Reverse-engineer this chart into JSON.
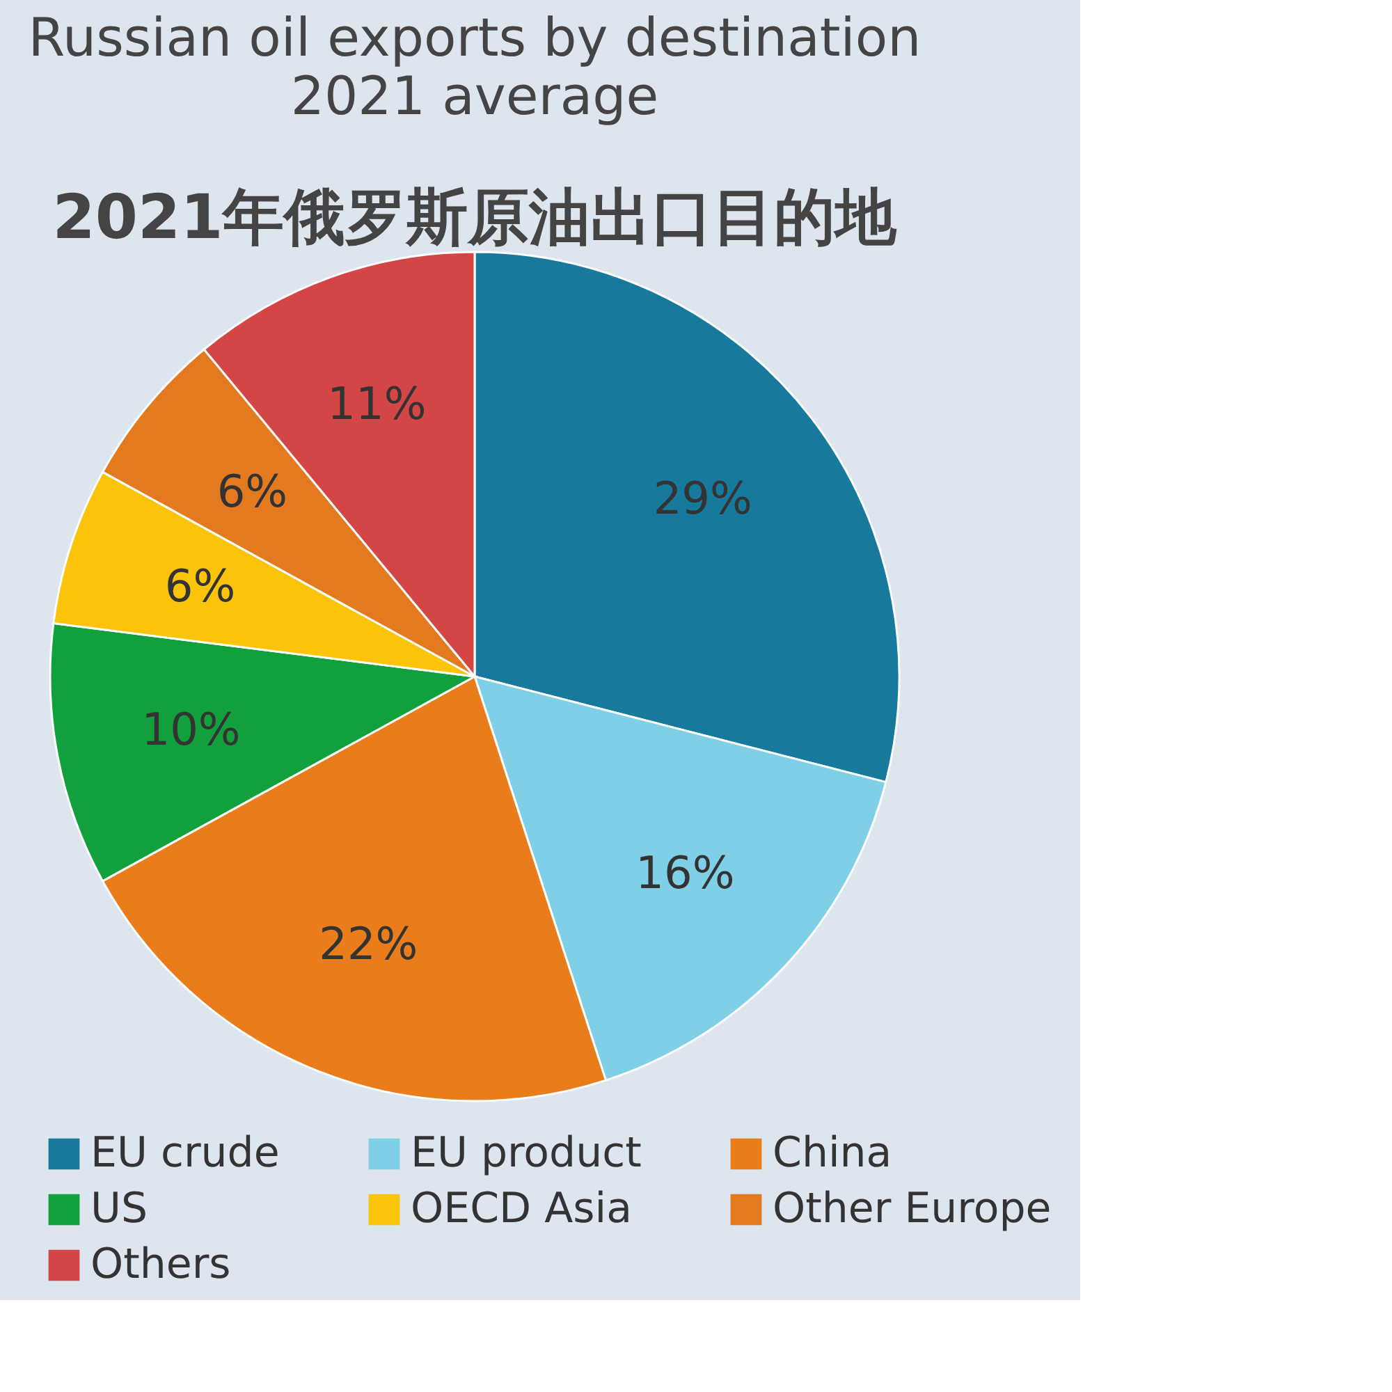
{
  "chart_data": {
    "type": "pie",
    "title": "Russian oil exports by destination",
    "subtitle": "2021 average",
    "annotations": [
      "2021年俄罗斯原油出口目的地"
    ],
    "categories": [
      "EU crude",
      "EU product",
      "China",
      "US",
      "OECD Asia",
      "Other Europe",
      "Others"
    ],
    "values": [
      29,
      16,
      22,
      10,
      6,
      6,
      11
    ],
    "colors": [
      "#17799b",
      "#7fcfe6",
      "#e97d1c",
      "#11a03c",
      "#fcc30b",
      "#e47a1f",
      "#d44646"
    ],
    "value_labels": [
      "29%",
      "16%",
      "22%",
      "10%",
      "6%",
      "6%",
      "11%"
    ],
    "legend": "bottom"
  }
}
